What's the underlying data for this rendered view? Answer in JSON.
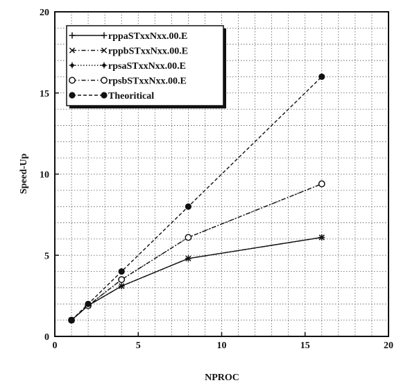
{
  "chart_data": {
    "type": "line",
    "title": "",
    "xlabel": "NPROC",
    "ylabel": "Speed-Up",
    "xlim": [
      0,
      20
    ],
    "ylim": [
      0,
      20
    ],
    "xticks": [
      0,
      5,
      10,
      15,
      20
    ],
    "yticks": [
      0,
      5,
      10,
      15,
      20
    ],
    "grid": true,
    "legend_position": "top-left",
    "series": [
      {
        "name": "rppaSTxxNxx.00.E",
        "marker": "plus",
        "dash": "solid",
        "x": [
          1,
          2,
          4,
          8,
          16
        ],
        "y": [
          1.0,
          1.9,
          3.1,
          4.8,
          6.1
        ]
      },
      {
        "name": "rppbSTxxNxx.00.E",
        "marker": "cross",
        "dash": "dashdot",
        "x": [
          1,
          2,
          4,
          8,
          16
        ],
        "y": [
          1.0,
          1.9,
          3.1,
          4.8,
          6.1
        ]
      },
      {
        "name": "rpsaSTxxNxx.00.E",
        "marker": "star",
        "dash": "dotted",
        "x": [
          1,
          2,
          4,
          8,
          16
        ],
        "y": [
          1.0,
          1.9,
          3.5,
          6.1,
          9.4
        ]
      },
      {
        "name": "rpsbSTxxNxx.00.E",
        "marker": "circle-open",
        "dash": "dashdot",
        "x": [
          1,
          2,
          4,
          8,
          16
        ],
        "y": [
          1.0,
          1.9,
          3.5,
          6.1,
          9.4
        ]
      },
      {
        "name": "Theoritical",
        "marker": "circle-filled",
        "dash": "dashed",
        "x": [
          1,
          2,
          4,
          8,
          16
        ],
        "y": [
          1,
          2,
          4,
          8,
          16
        ]
      }
    ]
  }
}
